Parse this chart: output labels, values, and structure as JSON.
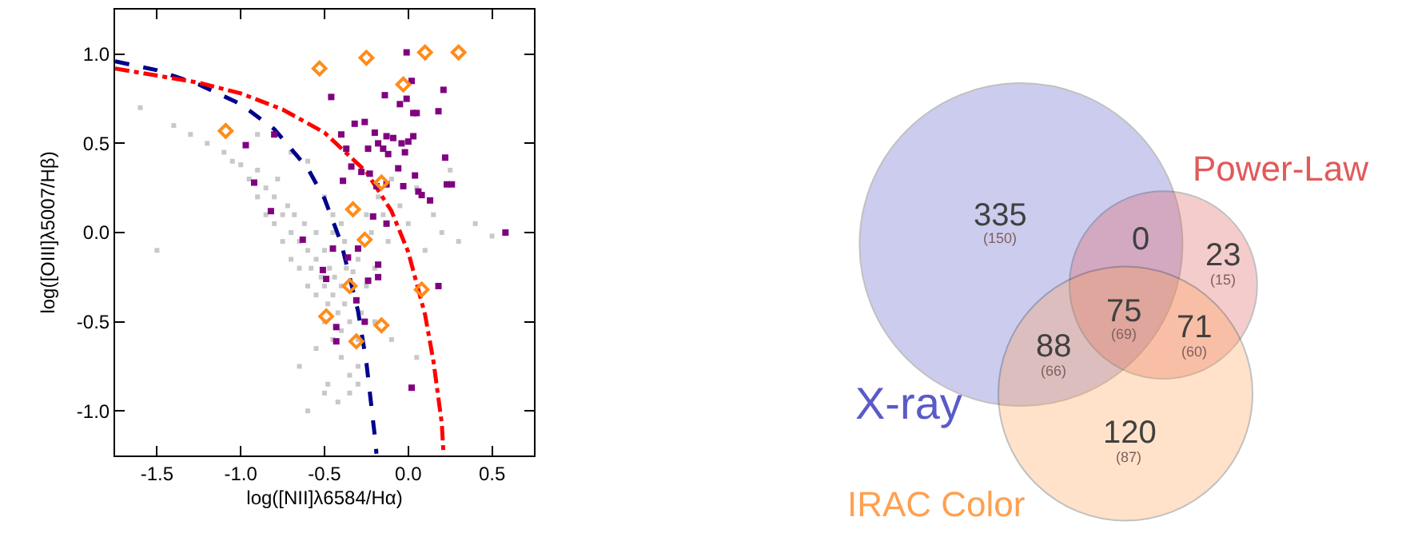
{
  "chart_data": [
    {
      "type": "scatter",
      "xlabel": "log([NII]λ6584/Hα)",
      "ylabel": "log([OIII]λ5007/Hβ)",
      "xlim": [
        -1.75,
        0.75
      ],
      "ylim": [
        -1.25,
        1.25
      ],
      "xticks": [
        {
          "value": -1.5,
          "label": "-1.5"
        },
        {
          "value": -1,
          "label": "-1.0"
        },
        {
          "value": -0.5,
          "label": "-0.5"
        },
        {
          "value": 0,
          "label": "0.0"
        },
        0.5
      ],
      "yticks": [
        {
          "value": -1,
          "label": "-1.0"
        },
        -0.5,
        {
          "value": 0,
          "label": "0.0"
        },
        0.5,
        {
          "value": 1,
          "label": "1.0"
        }
      ],
      "series": [
        {
          "type": "scatter",
          "color": "#c8c8c8",
          "marker": "square",
          "x": [
            -1.3,
            -1.2,
            -1.1,
            -1.05,
            -1.0,
            -0.95,
            -0.9,
            -0.9,
            -0.85,
            -0.85,
            -0.8,
            -0.8,
            -0.78,
            -0.75,
            -0.75,
            -0.72,
            -0.7,
            -0.7,
            -0.68,
            -0.65,
            -0.65,
            -0.62,
            -0.6,
            -0.6,
            -0.58,
            -0.55,
            -0.55,
            -0.55,
            -0.52,
            -0.5,
            -0.5,
            -0.5,
            -0.48,
            -0.47,
            -0.45,
            -0.45,
            -0.44,
            -0.42,
            -0.4,
            -0.4,
            -0.4,
            -0.38,
            -0.37,
            -0.35,
            -0.35,
            -0.33,
            -0.3,
            -0.3,
            -0.28,
            -0.25,
            -0.25,
            -0.22,
            -0.2,
            -0.18,
            -0.15,
            -0.12,
            -0.1,
            -0.05,
            0.0,
            0.05,
            0.1,
            0.15,
            0.2,
            0.3,
            0.4,
            0.5,
            -1.6,
            -1.4,
            -1.5,
            -0.9,
            -0.7,
            -0.6,
            -0.5,
            -0.45,
            -0.4,
            -0.35,
            -0.3,
            -0.55,
            -0.65,
            -0.48,
            -0.42,
            -0.38,
            -0.2,
            -0.1,
            0.05,
            0.25,
            -0.6,
            -0.5,
            -0.45,
            -0.3
          ],
          "values": [
            0.55,
            0.5,
            0.45,
            0.4,
            0.38,
            0.3,
            0.35,
            0.2,
            0.25,
            0.1,
            0.2,
            0.05,
            0.3,
            0.1,
            -0.05,
            0.15,
            0.0,
            -0.15,
            0.1,
            -0.05,
            -0.2,
            0.05,
            -0.1,
            -0.3,
            -0.2,
            0.0,
            -0.15,
            -0.35,
            -0.25,
            -0.1,
            -0.3,
            -0.5,
            -0.4,
            -0.2,
            -0.35,
            -0.6,
            -0.25,
            -0.45,
            -0.3,
            -0.55,
            -0.7,
            -0.4,
            -0.2,
            -0.5,
            -0.8,
            -0.22,
            -0.6,
            -0.15,
            -0.45,
            -0.3,
            0.1,
            0.0,
            -0.2,
            0.2,
            0.1,
            -0.05,
            0.3,
            0.15,
            0.05,
            0.25,
            -0.1,
            0.1,
            0.0,
            -0.05,
            0.05,
            -0.02,
            0.7,
            0.6,
            -0.1,
            0.55,
            0.45,
            0.4,
            0.2,
            0.1,
            0.05,
            -0.9,
            -0.75,
            -0.65,
            -0.75,
            -0.85,
            -0.95,
            -0.05,
            -0.5,
            -0.6,
            -0.7,
            0.35,
            -1.0,
            -0.9,
            0.0,
            -0.85
          ]
        },
        {
          "type": "line",
          "color": "#00008b",
          "line_style": "dashed",
          "x": [
            -1.75,
            -1.5,
            -1.25,
            -1.0,
            -0.8,
            -0.6,
            -0.5,
            -0.4,
            -0.3,
            -0.25,
            -0.2,
            -0.19
          ],
          "values": [
            0.96,
            0.91,
            0.83,
            0.72,
            0.58,
            0.36,
            0.19,
            -0.06,
            -0.44,
            -0.73,
            -1.14,
            -1.24
          ]
        },
        {
          "type": "line",
          "color": "#ff0000",
          "line_style": "dashdot",
          "x": [
            -1.75,
            -1.5,
            -1.25,
            -1.0,
            -0.75,
            -0.5,
            -0.25,
            -0.1,
            0.0,
            0.1,
            0.15,
            0.2,
            0.21
          ],
          "values": [
            0.92,
            0.88,
            0.84,
            0.78,
            0.69,
            0.56,
            0.34,
            0.12,
            -0.11,
            -0.46,
            -0.72,
            -1.07,
            -1.24
          ]
        },
        {
          "type": "scatter",
          "color": "#800080",
          "marker": "square",
          "x": [
            -0.01,
            0.02,
            -0.46,
            -0.14,
            -0.01,
            0.21,
            0.03,
            0.05,
            0.18,
            -0.05,
            -0.97,
            -0.8,
            -0.92,
            -0.82,
            -0.4,
            -0.32,
            -0.26,
            -0.2,
            -0.18,
            -0.13,
            -0.09,
            -0.04,
            -0.02,
            0.0,
            0.03,
            -0.12,
            -0.15,
            -0.24,
            -0.34,
            -0.37,
            -0.28,
            -0.23,
            -0.19,
            -0.13,
            -0.03,
            0.04,
            0.06,
            0.08,
            0.22,
            0.23,
            0.26,
            -0.06,
            -0.39,
            -0.21,
            -0.13,
            -0.63,
            -0.45,
            -0.3,
            -0.51,
            -0.49,
            -0.36,
            -0.18,
            -0.18,
            -0.24,
            -0.31,
            -0.26,
            -0.43,
            -0.43,
            0.02,
            0.18,
            0.58,
            0.13
          ],
          "values": [
            1.01,
            0.85,
            0.76,
            0.77,
            0.75,
            0.8,
            0.67,
            0.67,
            0.68,
            0.72,
            0.49,
            0.55,
            0.28,
            0.12,
            0.55,
            0.61,
            0.62,
            0.56,
            0.5,
            0.54,
            0.53,
            0.5,
            0.45,
            0.51,
            0.54,
            0.44,
            0.47,
            0.47,
            0.37,
            0.47,
            0.34,
            0.33,
            0.26,
            0.27,
            0.26,
            0.32,
            0.23,
            0.21,
            0.42,
            0.27,
            0.27,
            0.36,
            0.29,
            0.09,
            0.05,
            -0.04,
            -0.09,
            -0.09,
            -0.21,
            -0.26,
            -0.14,
            -0.18,
            -0.25,
            -0.27,
            -0.38,
            -0.5,
            -0.53,
            -0.61,
            -0.87,
            -0.3,
            0.0,
            0.18
          ]
        },
        {
          "type": "scatter",
          "color": "#ff8c1a",
          "marker": "diamond",
          "x": [
            -0.53,
            -0.25,
            0.1,
            0.3,
            -0.03,
            -1.09,
            -0.16,
            -0.33,
            -0.26,
            -0.35,
            0.08,
            -0.49,
            -0.16,
            -0.31
          ],
          "values": [
            0.92,
            0.98,
            1.01,
            1.01,
            0.83,
            0.57,
            0.28,
            0.13,
            -0.04,
            -0.3,
            -0.32,
            -0.47,
            -0.52,
            -0.61
          ]
        }
      ]
    },
    {
      "type": "other",
      "series": [
        {
          "name": "X-ray",
          "color": "#5a5ac8"
        },
        {
          "name": "Power-Law",
          "color": "#e05a5a"
        },
        {
          "name": "IRAC Color",
          "color": "#ffa050"
        }
      ],
      "annotations": [
        "335",
        "(150)",
        "0",
        "23",
        "(15)",
        "88",
        "(66)",
        "75",
        "(69)",
        "71",
        "(60)",
        "120",
        "(87)"
      ]
    }
  ]
}
